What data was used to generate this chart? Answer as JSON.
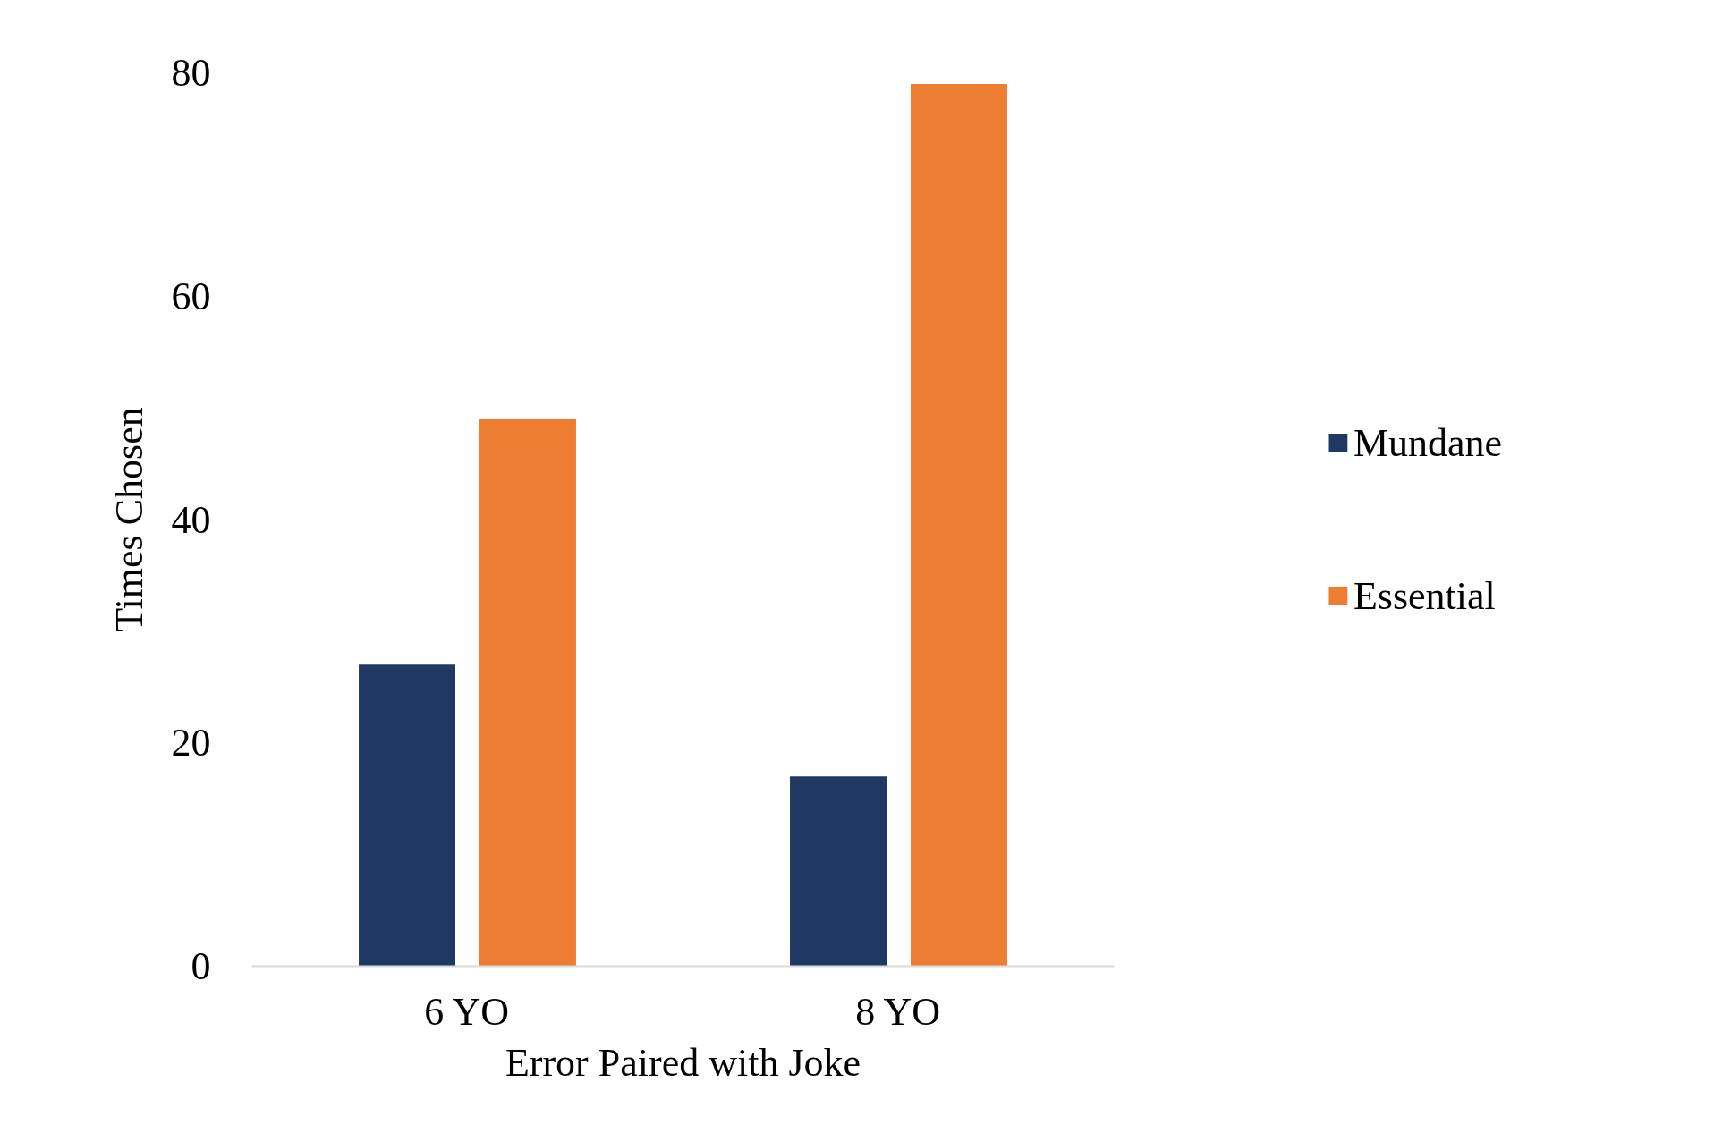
{
  "chart_data": {
    "type": "bar",
    "xlabel": "Error Paired with Joke",
    "ylabel": "Times Chosen",
    "categories": [
      "6 YO",
      "8 YO"
    ],
    "series": [
      {
        "name": "Mundane",
        "color": "#203864",
        "values": [
          27,
          17
        ]
      },
      {
        "name": "Essential",
        "color": "#ed7d31",
        "values": [
          49,
          79
        ]
      }
    ],
    "ylim": [
      0,
      80
    ],
    "yticks": [
      0,
      20,
      40,
      60,
      80
    ],
    "grid": false,
    "legend": "right"
  }
}
